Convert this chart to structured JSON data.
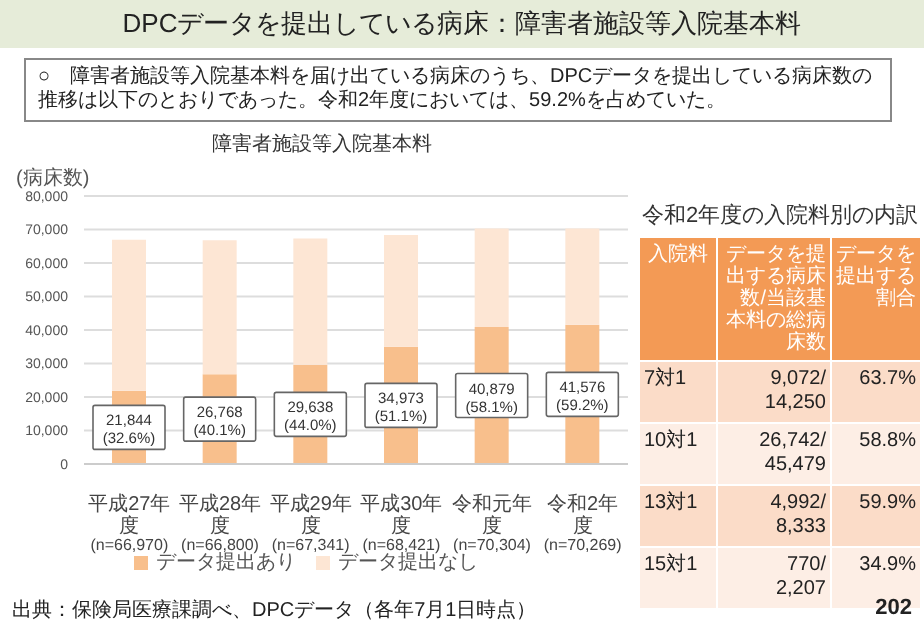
{
  "chart_data": [
    {
      "type": "bar",
      "title": "障害者施設等入院基本料",
      "ylabel": "(病床数)",
      "stacked": true,
      "grid": "y",
      "legend": "bottom",
      "categories": [
        "平成27年度\n(n=66,970)",
        "平成28年度\n(n=66,800)",
        "平成29年度\n(n=67,341)",
        "平成30年度\n(n=68,421)",
        "令和元年度\n(n=70,304)",
        "令和2年度\n(n=70,269)"
      ],
      "series": [
        {
          "name": "データ提出あり",
          "color": "#f8bf8c",
          "values": [
            21844,
            26768,
            29638,
            34973,
            40879,
            41576
          ],
          "value_labels": [
            "21,844\n(32.6%)",
            "26,768\n(40.1%)",
            "29,638\n(44.0%)",
            "34,973\n(51.1%)",
            "40,879\n(58.1%)",
            "41,576\n(59.2%)"
          ]
        },
        {
          "name": "データ提出なし",
          "color": "#fde6d4",
          "values": [
            45100,
            40000,
            37700,
            33400,
            29400,
            28700
          ]
        }
      ],
      "ylim": [
        0,
        80000
      ],
      "yticks": [
        0,
        {
          "value": 10000,
          "label": "10,000"
        },
        {
          "value": 20000,
          "label": "20,000"
        },
        {
          "value": 30000,
          "label": "30,000"
        },
        {
          "value": 40000,
          "label": "40,000"
        },
        {
          "value": 50000,
          "label": "50,000"
        },
        {
          "value": 60000,
          "label": "60,000"
        },
        {
          "value": 70000,
          "label": "70,000"
        },
        {
          "value": 80000,
          "label": "80,000"
        }
      ],
      "annotations": [
        "DPCデータを提出している病床：障害者施設等入院基本料",
        "○　障害者施設等入院基本料を届け出ている病床のうち、DPCデータを提出している病床数の推移は以下のとおりであった。令和2年度においては、59.2%を占めていた。",
        "出典：保険局医療課調べ、DPCデータ（各年7月1日時点）",
        "202"
      ]
    },
    {
      "type": "other",
      "title": "令和2年度の入院料別の内訳",
      "annotations": [
        "入院料",
        "データを提出する病床数/当該基本料の総病床数",
        "データを提出する割合",
        "7対1",
        "9,072/14,250",
        "63.7%",
        "10対1",
        "26,742/45,479",
        "58.8%",
        "13対1",
        "4,992/8,333",
        "59.9%",
        "15対1",
        "770/2,207",
        "34.9%"
      ]
    }
  ]
}
